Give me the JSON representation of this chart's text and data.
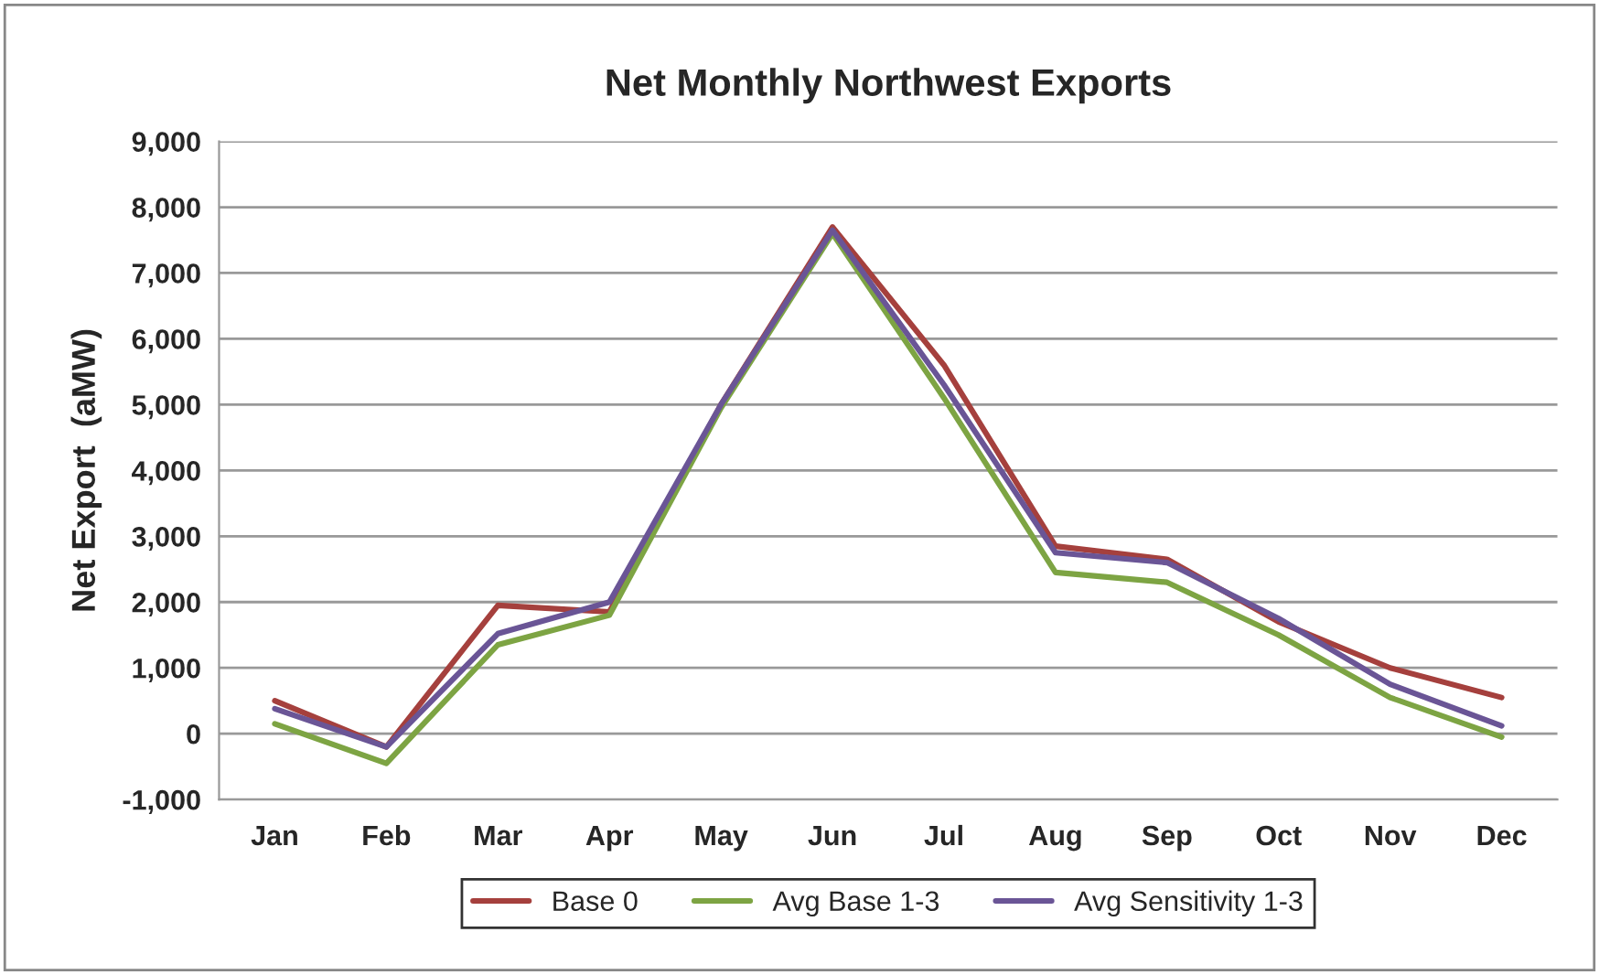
{
  "chart_data": {
    "type": "line",
    "title": "Net Monthly Northwest Exports",
    "ylabel": "Net Export  (aMW)",
    "categories": [
      "Jan",
      "Feb",
      "Mar",
      "Apr",
      "May",
      "Jun",
      "Jul",
      "Aug",
      "Sep",
      "Oct",
      "Nov",
      "Dec"
    ],
    "series": [
      {
        "name": "Base 0",
        "color": "#a5403d",
        "values": [
          500,
          -200,
          1950,
          1850,
          5000,
          7700,
          5600,
          2850,
          2650,
          1700,
          1000,
          550
        ]
      },
      {
        "name": "Avg Base 1-3",
        "color": "#7da443",
        "values": [
          150,
          -450,
          1350,
          1800,
          4950,
          7600,
          5100,
          2450,
          2300,
          1500,
          550,
          -50
        ]
      },
      {
        "name": "Avg Sensitivity 1-3",
        "color": "#6a5596",
        "values": [
          380,
          -200,
          1520,
          2000,
          5000,
          7650,
          5300,
          2750,
          2600,
          1750,
          750,
          120
        ]
      }
    ],
    "ylim": [
      -1000,
      9000
    ],
    "yticks": [
      {
        "value": -1000,
        "label": "-1,000"
      },
      0,
      {
        "value": 1000,
        "label": "1,000"
      },
      {
        "value": 2000,
        "label": "2,000"
      },
      {
        "value": 3000,
        "label": "3,000"
      },
      {
        "value": 4000,
        "label": "4,000"
      },
      {
        "value": 5000,
        "label": "5,000"
      },
      {
        "value": 6000,
        "label": "6,000"
      },
      {
        "value": 7000,
        "label": "7,000"
      },
      {
        "value": 8000,
        "label": "8,000"
      },
      {
        "value": 9000,
        "label": "9,000"
      }
    ],
    "grid": "y",
    "legend": "bottom",
    "marker": "none",
    "line_style": "solid"
  }
}
